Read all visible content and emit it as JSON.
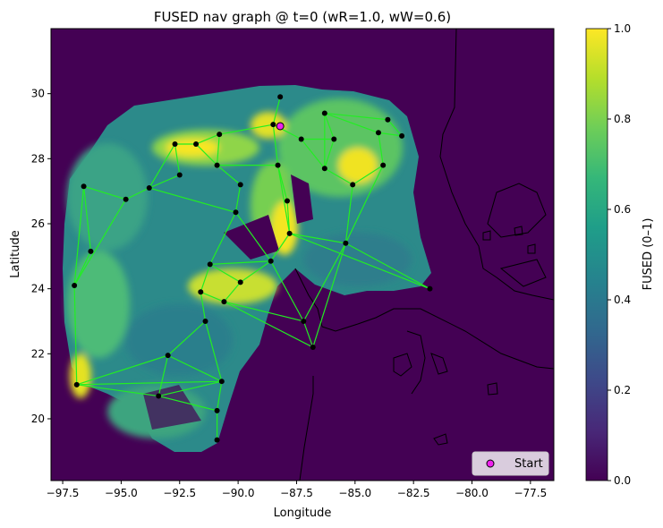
{
  "title": "FUSED nav graph @ t=0  (wR=1.0, wW=0.6)",
  "colors": {
    "background": "#440154",
    "edge": "#22ee22",
    "node": "#000000",
    "start_fill": "#ee22ee",
    "viridis": [
      "#440154",
      "#482878",
      "#3e4989",
      "#31688e",
      "#26828e",
      "#1f9e89",
      "#35b779",
      "#6ece58",
      "#b5de2b",
      "#fde725"
    ]
  },
  "chart_data": {
    "type": "heatmap",
    "title": "FUSED nav graph @ t=0  (wR=1.0, wW=0.6)",
    "xlabel": "Longitude",
    "ylabel": "Latitude",
    "xlim": [
      -98.0,
      -76.5
    ],
    "ylim": [
      18.1,
      32.0
    ],
    "xticks": [
      -97.5,
      -95.0,
      -92.5,
      -90.0,
      -87.5,
      -85.0,
      -82.5,
      -80.0,
      -77.5
    ],
    "xtick_labels": [
      "−97.5",
      "−95.0",
      "−92.5",
      "−90.0",
      "−87.5",
      "−85.0",
      "−82.5",
      "−80.0",
      "−77.5"
    ],
    "yticks": [
      20,
      22,
      24,
      26,
      28,
      30
    ],
    "ytick_labels": [
      "20",
      "22",
      "24",
      "26",
      "28",
      "30"
    ],
    "colorbar": {
      "label": "FUSED (0–1)",
      "range": [
        0,
        1
      ],
      "ticks": [
        0.0,
        0.2,
        0.4,
        0.6,
        0.8,
        1.0
      ],
      "tick_labels": [
        "0.0",
        "0.2",
        "0.4",
        "0.6",
        "0.8",
        "1.0"
      ],
      "colormap": "viridis"
    },
    "legend": {
      "position": "lower-right",
      "entries": [
        "Start"
      ]
    },
    "start": [
      -88.2,
      29.0
    ],
    "nodes": [
      [
        -88.2,
        29.9
      ],
      [
        -88.5,
        29.05
      ],
      [
        -86.3,
        29.4
      ],
      [
        -84.0,
        28.8
      ],
      [
        -83.6,
        29.2
      ],
      [
        -83.0,
        28.7
      ],
      [
        -87.3,
        28.6
      ],
      [
        -85.9,
        28.6
      ],
      [
        -90.8,
        28.75
      ],
      [
        -91.8,
        28.45
      ],
      [
        -92.7,
        28.45
      ],
      [
        -90.9,
        27.8
      ],
      [
        -88.3,
        27.8
      ],
      [
        -86.3,
        27.7
      ],
      [
        -85.1,
        27.2
      ],
      [
        -83.8,
        27.8
      ],
      [
        -92.5,
        27.5
      ],
      [
        -96.6,
        27.15
      ],
      [
        -94.8,
        26.75
      ],
      [
        -93.8,
        27.1
      ],
      [
        -89.9,
        27.2
      ],
      [
        -90.1,
        26.35
      ],
      [
        -87.9,
        26.7
      ],
      [
        -87.8,
        25.7
      ],
      [
        -85.4,
        25.4
      ],
      [
        -96.3,
        25.15
      ],
      [
        -91.2,
        24.75
      ],
      [
        -88.6,
        24.85
      ],
      [
        -81.8,
        24.0
      ],
      [
        -97.0,
        24.1
      ],
      [
        -89.9,
        24.2
      ],
      [
        -91.6,
        23.9
      ],
      [
        -90.6,
        23.6
      ],
      [
        -87.2,
        23.0
      ],
      [
        -91.4,
        23.0
      ],
      [
        -86.8,
        22.2
      ],
      [
        -93.0,
        21.95
      ],
      [
        -96.9,
        21.05
      ],
      [
        -90.7,
        21.15
      ],
      [
        -93.4,
        20.7
      ],
      [
        -90.9,
        20.25
      ],
      [
        -90.9,
        19.35
      ]
    ],
    "edges": [
      [
        0,
        1
      ],
      [
        1,
        6
      ],
      [
        1,
        8
      ],
      [
        1,
        12
      ],
      [
        6,
        7
      ],
      [
        6,
        13
      ],
      [
        7,
        2
      ],
      [
        7,
        13
      ],
      [
        2,
        3
      ],
      [
        2,
        4
      ],
      [
        4,
        5
      ],
      [
        5,
        3
      ],
      [
        3,
        15
      ],
      [
        15,
        14
      ],
      [
        14,
        13
      ],
      [
        13,
        2
      ],
      [
        14,
        24
      ],
      [
        15,
        24
      ],
      [
        8,
        9
      ],
      [
        9,
        10
      ],
      [
        10,
        16
      ],
      [
        9,
        11
      ],
      [
        8,
        11
      ],
      [
        11,
        20
      ],
      [
        11,
        12
      ],
      [
        12,
        22
      ],
      [
        12,
        23
      ],
      [
        20,
        21
      ],
      [
        21,
        26
      ],
      [
        21,
        27
      ],
      [
        22,
        23
      ],
      [
        23,
        24
      ],
      [
        23,
        27
      ],
      [
        24,
        28
      ],
      [
        23,
        28
      ],
      [
        24,
        33
      ],
      [
        17,
        18
      ],
      [
        18,
        19
      ],
      [
        19,
        10
      ],
      [
        17,
        25
      ],
      [
        17,
        29
      ],
      [
        25,
        29
      ],
      [
        19,
        16
      ],
      [
        19,
        21
      ],
      [
        18,
        29
      ],
      [
        26,
        27
      ],
      [
        26,
        30
      ],
      [
        27,
        30
      ],
      [
        27,
        33
      ],
      [
        30,
        32
      ],
      [
        32,
        33
      ],
      [
        31,
        32
      ],
      [
        31,
        34
      ],
      [
        26,
        31
      ],
      [
        33,
        35
      ],
      [
        35,
        24
      ],
      [
        32,
        35
      ],
      [
        34,
        36
      ],
      [
        36,
        37
      ],
      [
        37,
        29
      ],
      [
        37,
        39
      ],
      [
        37,
        38
      ],
      [
        36,
        38
      ],
      [
        36,
        39
      ],
      [
        39,
        38
      ],
      [
        39,
        40
      ],
      [
        40,
        38
      ],
      [
        40,
        41
      ],
      [
        34,
        38
      ]
    ]
  }
}
